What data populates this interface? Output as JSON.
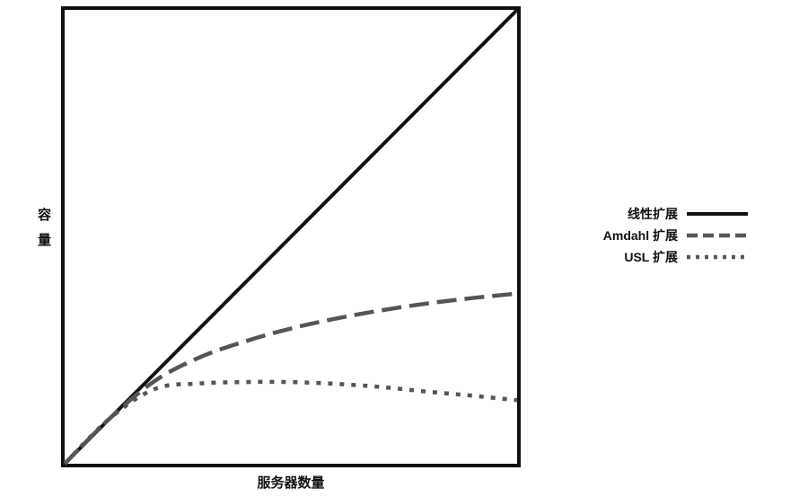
{
  "chart_data": {
    "type": "line",
    "title": "",
    "xlabel": "服务器数量",
    "ylabel": "容量",
    "ylabel_chars": [
      "容",
      "量"
    ],
    "xlim": [
      0,
      1
    ],
    "ylim": [
      0,
      1
    ],
    "grid": false,
    "axis_ticks": false,
    "legend_position": "right",
    "x": [
      0,
      0.1,
      0.2,
      0.3,
      0.4,
      0.5,
      0.6,
      0.7,
      0.8,
      0.9,
      1.0
    ],
    "series": [
      {
        "name": "线性扩展",
        "style": "solid",
        "color": "#111111",
        "values": [
          0,
          0.1,
          0.2,
          0.3,
          0.4,
          0.5,
          0.6,
          0.7,
          0.8,
          0.9,
          1.0
        ]
      },
      {
        "name": "Amdahl 扩展",
        "style": "dashed",
        "color": "#555555",
        "values": [
          0,
          0.1,
          0.183,
          0.235,
          0.27,
          0.298,
          0.32,
          0.338,
          0.353,
          0.365,
          0.375
        ]
      },
      {
        "name": "USL 扩展",
        "style": "dotted",
        "color": "#555555",
        "values": [
          0,
          0.1,
          0.165,
          0.177,
          0.18,
          0.18,
          0.176,
          0.169,
          0.159,
          0.15,
          0.14
        ]
      }
    ]
  }
}
